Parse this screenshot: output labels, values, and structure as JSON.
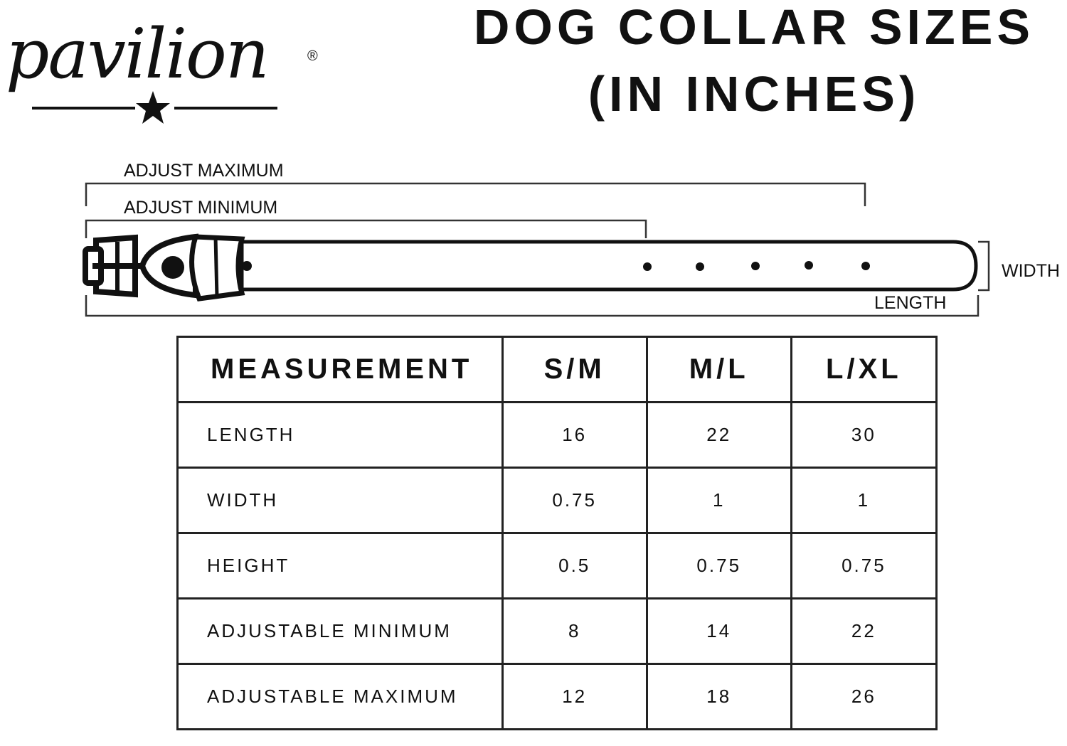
{
  "brand": {
    "name": "pavilion",
    "registered": "®"
  },
  "title": {
    "line1": "DOG COLLAR SIZES",
    "line2": "(IN INCHES)"
  },
  "diagram": {
    "adjust_maximum": "ADJUST MAXIMUM",
    "adjust_minimum": "ADJUST MINIMUM",
    "width": "WIDTH",
    "length": "LENGTH"
  },
  "table": {
    "headers": [
      "MEASUREMENT",
      "S/M",
      "M/L",
      "L/XL"
    ],
    "rows": [
      {
        "label": "LENGTH",
        "values": [
          "16",
          "22",
          "30"
        ]
      },
      {
        "label": "WIDTH",
        "values": [
          "0.75",
          "1",
          "1"
        ]
      },
      {
        "label": "HEIGHT",
        "values": [
          "0.5",
          "0.75",
          "0.75"
        ]
      },
      {
        "label": "ADJUSTABLE MINIMUM",
        "values": [
          "8",
          "14",
          "22"
        ]
      },
      {
        "label": "ADJUSTABLE MAXIMUM",
        "values": [
          "12",
          "18",
          "26"
        ]
      }
    ]
  }
}
